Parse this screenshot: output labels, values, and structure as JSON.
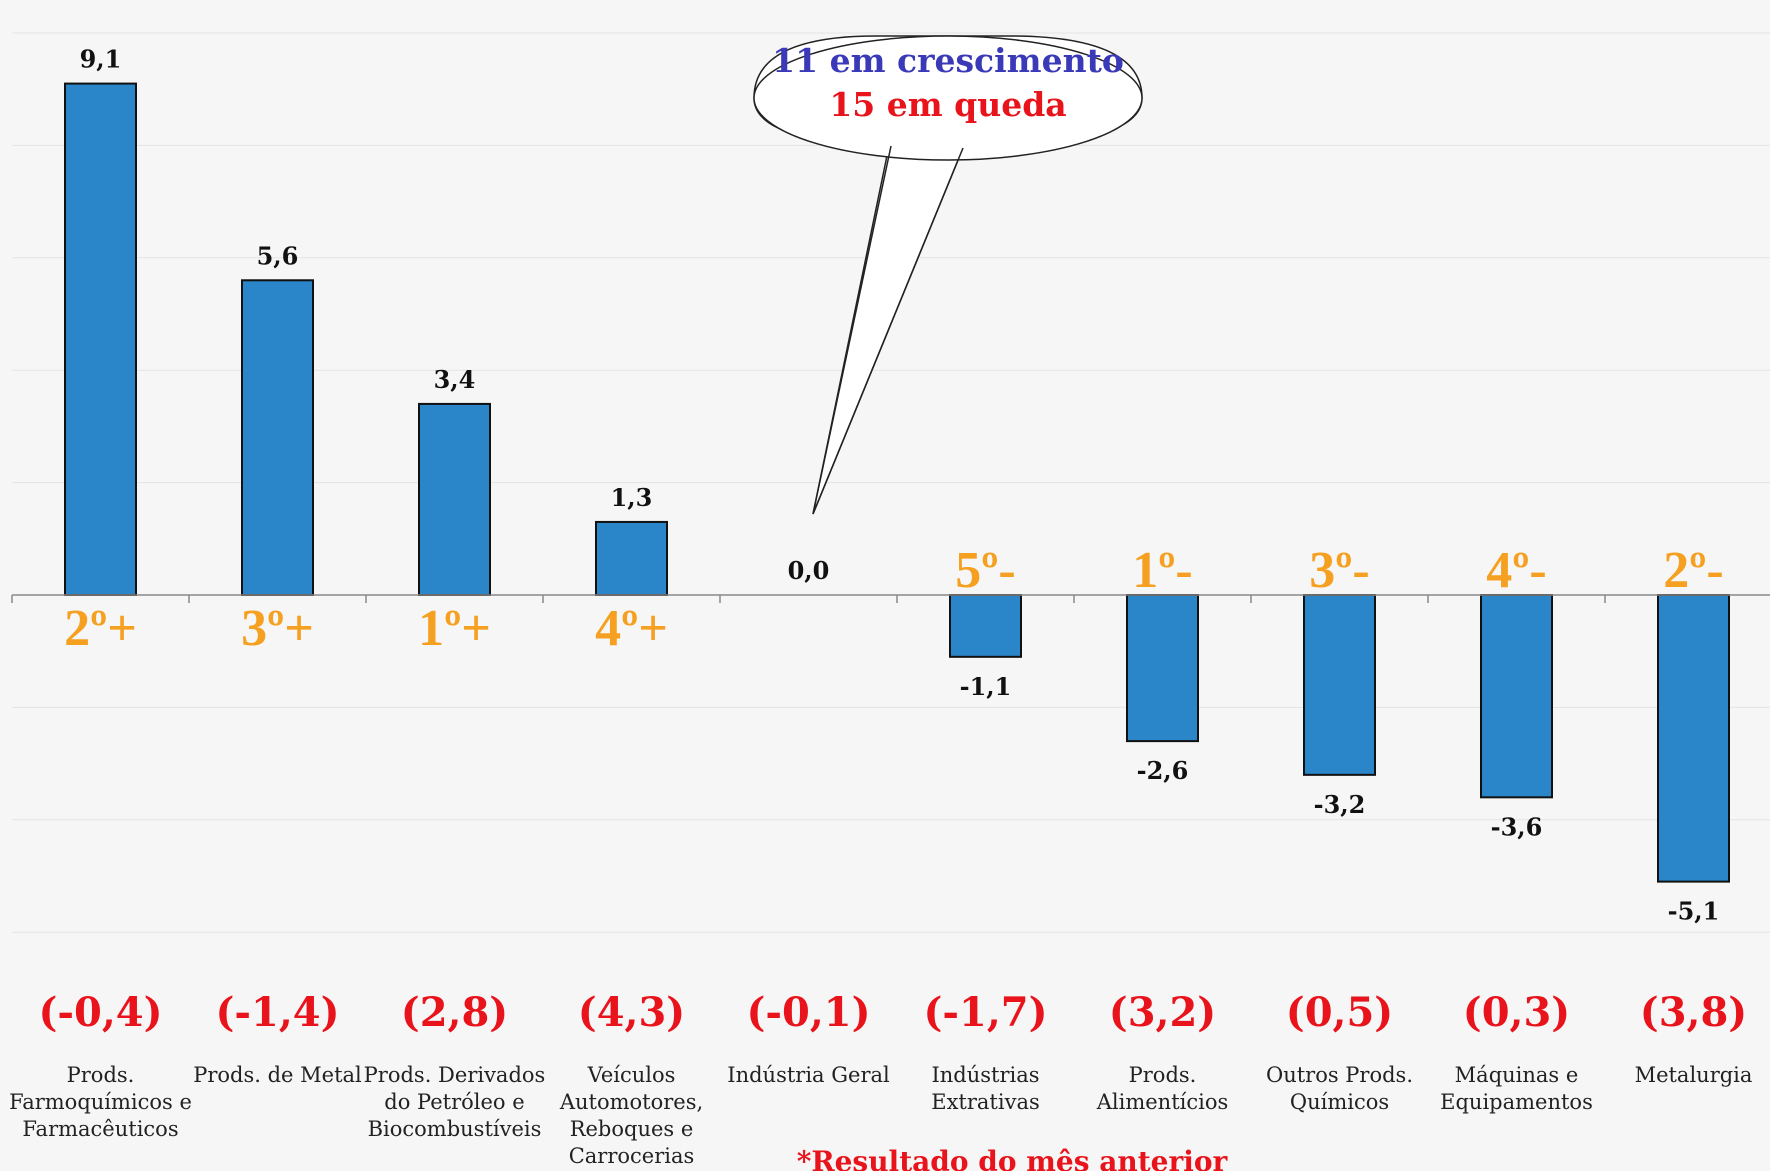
{
  "chart_data": {
    "type": "bar",
    "categories": [
      "Prods. Farmoquímicos e Farmacêuticos",
      "Prods. de Metal",
      "Prods. Derivados do Petróleo e Biocombustíveis",
      "Veículos Automotores, Reboques e Carrocerias",
      "Indústria Geral",
      "Indústrias Extrativas",
      "Prods. Alimentícios",
      "Outros Prods. Químicos",
      "Máquinas e Equipamentos",
      "Metalurgia"
    ],
    "category_lines": [
      [
        "Prods.",
        "Farmoquímicos e",
        "Farmacêuticos"
      ],
      [
        "Prods. de Metal"
      ],
      [
        "Prods. Derivados",
        "do Petróleo e",
        "Biocombustíveis"
      ],
      [
        "Veículos",
        "Automotores,",
        "Reboques e",
        "Carrocerias"
      ],
      [
        "Indústria Geral"
      ],
      [
        "Indústrias",
        "Extrativas"
      ],
      [
        "Prods.",
        "Alimentícios"
      ],
      [
        "Outros Prods.",
        "Químicos"
      ],
      [
        "Máquinas e",
        "Equipamentos"
      ],
      [
        "Metalurgia"
      ]
    ],
    "values": [
      9.1,
      5.6,
      3.4,
      1.3,
      0.0,
      -1.1,
      -2.6,
      -3.2,
      -3.6,
      -5.1
    ],
    "value_labels": [
      "9,1",
      "5,6",
      "3,4",
      "1,3",
      "0,0",
      "-1,1",
      "-2,6",
      "-3,2",
      "-3,6",
      "-5,1"
    ],
    "rank_labels": [
      "2º+",
      "3º+",
      "1º+",
      "4º+",
      "",
      "5º-",
      "1º-",
      "3º-",
      "4º-",
      "2º-"
    ],
    "previous_month_labels": [
      "(-0,4)",
      "(-1,4)",
      "(2,8)",
      "(4,3)",
      "(-0,1)",
      "(-1,7)",
      "(3,2)",
      "(0,5)",
      "(0,3)",
      "(3,8)"
    ],
    "ylim": [
      -6,
      10
    ],
    "grid": true,
    "title": "",
    "xlabel": "",
    "ylabel": "",
    "bar_color": "#2a86c9",
    "rank_color": "#f5a020",
    "previous_color": "#e8131b",
    "callout": {
      "line1": "11 em crescimento",
      "line2": "15 em queda",
      "line1_color": "#3a3ab8",
      "line2_color": "#e8131b"
    },
    "footnote": "*Resultado do mês anterior"
  }
}
